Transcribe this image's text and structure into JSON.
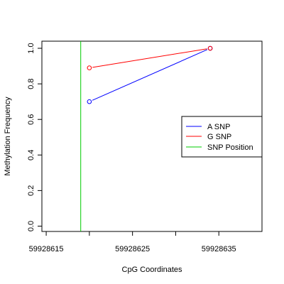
{
  "chart_data": {
    "type": "line",
    "title": "",
    "xlabel": "CpG Coordinates",
    "ylabel": "Methylation Frequency",
    "xlim": [
      59928614.5,
      59928640
    ],
    "ylim": [
      -0.03,
      1.04
    ],
    "x_ticks": [
      59928615,
      59928620,
      59928625,
      59928630,
      59928635
    ],
    "x_tick_labels": [
      "59928615",
      "",
      "59928625",
      "",
      "59928635"
    ],
    "y_ticks": [
      0.0,
      0.2,
      0.4,
      0.6,
      0.8,
      1.0
    ],
    "y_tick_labels": [
      "0.0",
      "0.2",
      "0.4",
      "0.6",
      "0.8",
      "1.0"
    ],
    "grid": false,
    "legend_position": "right",
    "series": [
      {
        "name": "A SNP",
        "color": "#0000ff",
        "x": [
          59928620,
          59928634
        ],
        "y": [
          0.7,
          1.0
        ]
      },
      {
        "name": "G SNP",
        "color": "#ff0000",
        "x": [
          59928620,
          59928634
        ],
        "y": [
          0.89,
          1.0
        ]
      }
    ],
    "snp_position": {
      "name": "SNP Position",
      "color": "#00cc00",
      "x": 59928619
    }
  }
}
